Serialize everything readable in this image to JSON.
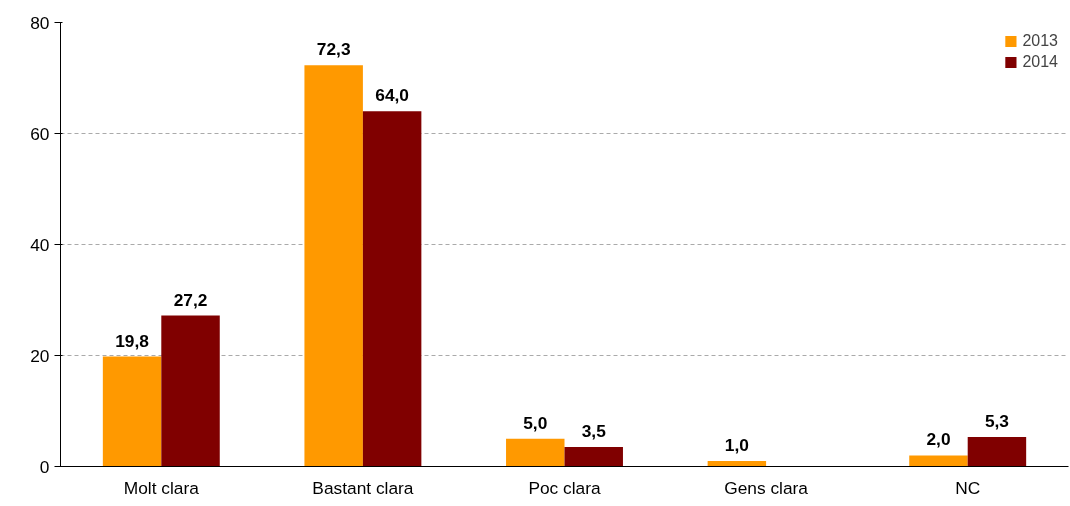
{
  "chart_data": {
    "type": "bar",
    "categories": [
      "Molt clara",
      "Bastant clara",
      "Poc clara",
      "Gens clara",
      "NC"
    ],
    "series": [
      {
        "name": "2013",
        "color": "#ff9900",
        "values": [
          19.8,
          72.3,
          5.0,
          1.0,
          2.0
        ],
        "value_labels": [
          "19,8",
          "72,3",
          "5,0",
          "1,0",
          "2,0"
        ]
      },
      {
        "name": "2014",
        "color": "#800000",
        "values": [
          27.2,
          64.0,
          3.5,
          null,
          5.3
        ],
        "value_labels": [
          "27,2",
          "64,0",
          "3,5",
          null,
          "5,3"
        ]
      }
    ],
    "ylim": [
      0,
      80
    ],
    "yticks": [
      0,
      20,
      40,
      60,
      80
    ],
    "grid": "y",
    "legend": "top right"
  }
}
